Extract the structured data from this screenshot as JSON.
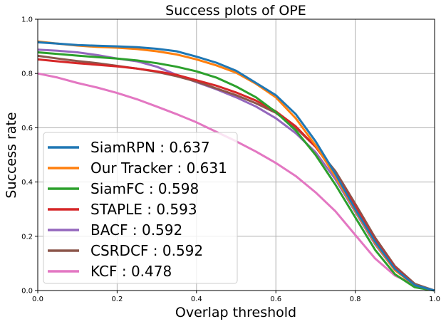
{
  "chart_data": {
    "type": "line",
    "title": "Success plots of OPE",
    "xlabel": "Overlap threshold",
    "ylabel": "Success rate",
    "xlim": [
      0,
      1
    ],
    "ylim": [
      0,
      1
    ],
    "xticks": [
      "0.0",
      "0.2",
      "0.4",
      "0.6",
      "0.8",
      "1.0"
    ],
    "yticks": [
      "0.0",
      "0.2",
      "0.4",
      "0.6",
      "0.8",
      "1.0"
    ],
    "grid": true,
    "legend_position": "lower-left",
    "x": [
      0,
      0.05,
      0.1,
      0.15,
      0.2,
      0.25,
      0.3,
      0.35,
      0.4,
      0.45,
      0.5,
      0.55,
      0.6,
      0.65,
      0.7,
      0.75,
      0.8,
      0.85,
      0.9,
      0.95,
      1.0
    ],
    "series": [
      {
        "name": "SiamRPN : 0.637",
        "color": "#1f77b4",
        "values": [
          0.915,
          0.91,
          0.905,
          0.902,
          0.9,
          0.897,
          0.891,
          0.882,
          0.862,
          0.84,
          0.81,
          0.765,
          0.72,
          0.65,
          0.55,
          0.43,
          0.3,
          0.18,
          0.08,
          0.02,
          0.0
        ]
      },
      {
        "name": "Our Tracker : 0.631",
        "color": "#ff7f0e",
        "values": [
          0.918,
          0.91,
          0.903,
          0.898,
          0.895,
          0.89,
          0.882,
          0.87,
          0.852,
          0.83,
          0.803,
          0.762,
          0.712,
          0.635,
          0.535,
          0.42,
          0.295,
          0.175,
          0.075,
          0.02,
          0.0
        ]
      },
      {
        "name": "SiamFC : 0.598",
        "color": "#2ca02c",
        "values": [
          0.878,
          0.872,
          0.866,
          0.86,
          0.855,
          0.848,
          0.838,
          0.825,
          0.808,
          0.785,
          0.752,
          0.712,
          0.658,
          0.59,
          0.5,
          0.39,
          0.27,
          0.15,
          0.06,
          0.012,
          0.0
        ]
      },
      {
        "name": "STAPLE : 0.593",
        "color": "#d62728",
        "values": [
          0.852,
          0.845,
          0.838,
          0.832,
          0.826,
          0.818,
          0.808,
          0.795,
          0.775,
          0.755,
          0.73,
          0.7,
          0.66,
          0.605,
          0.53,
          0.43,
          0.31,
          0.185,
          0.085,
          0.02,
          0.0
        ]
      },
      {
        "name": "BACF : 0.592",
        "color": "#9467bd",
        "values": [
          0.888,
          0.884,
          0.878,
          0.868,
          0.855,
          0.845,
          0.825,
          0.795,
          0.768,
          0.742,
          0.712,
          0.678,
          0.635,
          0.58,
          0.51,
          0.41,
          0.29,
          0.17,
          0.075,
          0.02,
          0.0
        ]
      },
      {
        "name": "CSRDCF : 0.592",
        "color": "#8c564b",
        "values": [
          0.865,
          0.855,
          0.846,
          0.838,
          0.828,
          0.818,
          0.806,
          0.79,
          0.77,
          0.745,
          0.72,
          0.69,
          0.655,
          0.6,
          0.53,
          0.44,
          0.32,
          0.195,
          0.09,
          0.025,
          0.0
        ]
      },
      {
        "name": "KCF : 0.478",
        "color": "#e377c2",
        "values": [
          0.8,
          0.785,
          0.765,
          0.748,
          0.728,
          0.705,
          0.678,
          0.65,
          0.62,
          0.585,
          0.55,
          0.512,
          0.47,
          0.422,
          0.362,
          0.292,
          0.205,
          0.118,
          0.055,
          0.022,
          0.0
        ]
      }
    ]
  }
}
